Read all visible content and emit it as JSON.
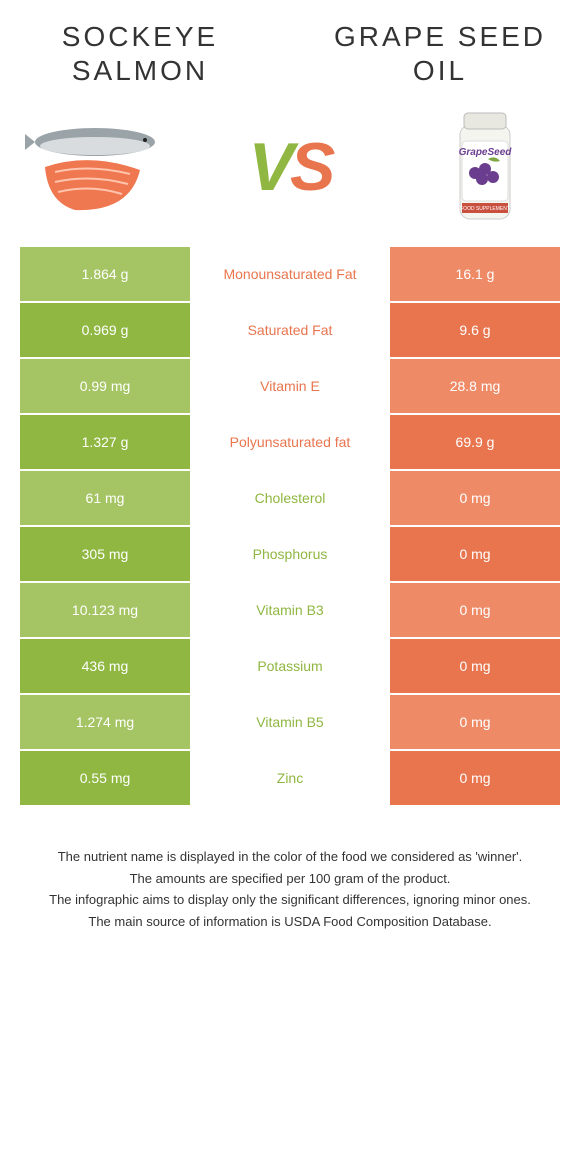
{
  "left_food": {
    "title": "SOCKEYE SALMON",
    "color": "#8fb741"
  },
  "right_food": {
    "title": "GRAPE SEED OIL",
    "color": "#e9754e"
  },
  "vs": {
    "v_color": "#8fb741",
    "s_color": "#e9754e"
  },
  "salmon_svg": {
    "fish_body": "#9aa3a8",
    "fish_belly": "#d8dcde",
    "fillet": "#f07850",
    "fillet_lines": "#ffc4ae"
  },
  "grape_svg": {
    "bottle": "#f5f5f0",
    "cap": "#e8e8e0",
    "label_purple": "#6b3d8f",
    "label_green": "#7fa843",
    "label_band": "#c94f3f"
  },
  "rows": [
    {
      "label": "Monounsaturated Fat",
      "left": "1.864 g",
      "right": "16.1 g",
      "winner": "right"
    },
    {
      "label": "Saturated Fat",
      "left": "0.969 g",
      "right": "9.6 g",
      "winner": "right"
    },
    {
      "label": "Vitamin E",
      "left": "0.99 mg",
      "right": "28.8 mg",
      "winner": "right"
    },
    {
      "label": "Polyunsaturated fat",
      "left": "1.327 g",
      "right": "69.9 g",
      "winner": "right"
    },
    {
      "label": "Cholesterol",
      "left": "61 mg",
      "right": "0 mg",
      "winner": "left"
    },
    {
      "label": "Phosphorus",
      "left": "305 mg",
      "right": "0 mg",
      "winner": "left"
    },
    {
      "label": "Vitamin B3",
      "left": "10.123 mg",
      "right": "0 mg",
      "winner": "left"
    },
    {
      "label": "Potassium",
      "left": "436 mg",
      "right": "0 mg",
      "winner": "left"
    },
    {
      "label": "Vitamin B5",
      "left": "1.274 mg",
      "right": "0 mg",
      "winner": "left"
    },
    {
      "label": "Zinc",
      "left": "0.55 mg",
      "right": "0 mg",
      "winner": "left"
    }
  ],
  "shades": {
    "left_light": "#a5c464",
    "left_dark": "#8fb741",
    "right_light": "#ef8a67",
    "right_dark": "#e9754e"
  },
  "footer": {
    "l1": "The nutrient name is displayed in the color of the food we considered as 'winner'.",
    "l2": "The amounts are specified per 100 gram of the product.",
    "l3": "The infographic aims to display only the significant differences, ignoring minor ones.",
    "l4": "The main source of information is USDA Food Composition Database."
  }
}
